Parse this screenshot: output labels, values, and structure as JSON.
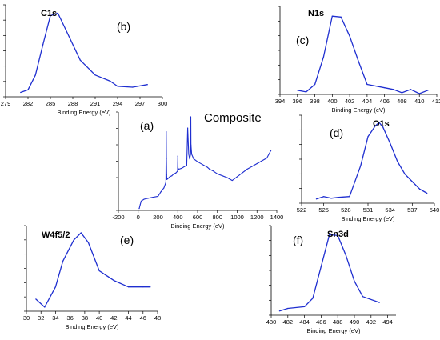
{
  "figure": {
    "xlabel": "Binding Energy (eV)",
    "line_color": "#1f2fd0",
    "axis_color": "#000000"
  },
  "chart_data": [
    {
      "id": "b",
      "type": "line",
      "letter": "(b)",
      "title": "C1s",
      "xlabel": "Binding Energy (eV)",
      "xlim": [
        279,
        300
      ],
      "ylim": [
        0,
        1
      ],
      "xticks": [
        279,
        282,
        285,
        288,
        291,
        294,
        297,
        300
      ],
      "x": [
        281,
        282,
        283,
        284,
        285,
        286,
        287,
        289,
        291,
        293,
        294,
        296,
        298
      ],
      "y": [
        0.05,
        0.08,
        0.25,
        0.6,
        0.93,
        0.96,
        0.78,
        0.42,
        0.25,
        0.18,
        0.12,
        0.11,
        0.14
      ]
    },
    {
      "id": "c",
      "type": "line",
      "letter": "(c)",
      "title": "N1s",
      "xlabel": "Binding Energy (eV)",
      "xlim": [
        394,
        412
      ],
      "ylim": [
        0,
        1
      ],
      "xticks": [
        394,
        396,
        398,
        400,
        402,
        404,
        406,
        408,
        410,
        412
      ],
      "x": [
        396,
        397,
        398,
        399,
        400,
        401,
        402,
        403,
        404,
        406,
        407,
        408,
        409,
        410,
        411
      ],
      "y": [
        0.05,
        0.03,
        0.12,
        0.45,
        0.94,
        0.93,
        0.7,
        0.4,
        0.12,
        0.08,
        0.06,
        0.02,
        0.06,
        0.01,
        0.05
      ]
    },
    {
      "id": "a",
      "type": "line",
      "letter": "(a)",
      "title": "Composite",
      "xlabel": "Binding Energy (eV)",
      "xlim": [
        -200,
        1400
      ],
      "ylim": [
        0,
        1
      ],
      "xticks": [
        -200,
        0,
        200,
        400,
        600,
        800,
        1000,
        1200,
        1400
      ],
      "x": [
        10,
        20,
        30,
        60,
        100,
        150,
        200,
        230,
        260,
        280,
        283,
        285,
        287,
        290,
        300,
        320,
        340,
        360,
        380,
        398,
        400,
        402,
        410,
        440,
        470,
        490,
        500,
        510,
        520,
        529,
        531,
        533,
        540,
        560,
        600,
        650,
        700,
        720,
        760,
        800,
        850,
        900,
        950,
        1000,
        1050,
        1100,
        1150,
        1200,
        1250,
        1300,
        1320,
        1340
      ],
      "y": [
        0.02,
        0.06,
        0.1,
        0.12,
        0.13,
        0.14,
        0.15,
        0.2,
        0.24,
        0.3,
        0.84,
        0.55,
        0.38,
        0.33,
        0.34,
        0.36,
        0.37,
        0.39,
        0.4,
        0.42,
        0.58,
        0.45,
        0.44,
        0.45,
        0.47,
        0.48,
        0.88,
        0.6,
        0.55,
        0.6,
        1.0,
        0.7,
        0.6,
        0.55,
        0.52,
        0.49,
        0.46,
        0.44,
        0.42,
        0.39,
        0.37,
        0.35,
        0.32,
        0.36,
        0.4,
        0.44,
        0.47,
        0.5,
        0.53,
        0.56,
        0.6,
        0.64
      ]
    },
    {
      "id": "d",
      "type": "line",
      "letter": "(d)",
      "title": "O1s",
      "xlabel": "Binding Energy (eV)",
      "xlim": [
        522,
        540
      ],
      "ylim": [
        0,
        1
      ],
      "xticks": [
        522,
        525,
        528,
        531,
        534,
        537,
        540
      ],
      "x": [
        524,
        525,
        526,
        527,
        528.5,
        530,
        531,
        532,
        532.5,
        533,
        534,
        535,
        536,
        537,
        538,
        539
      ],
      "y": [
        0.05,
        0.08,
        0.06,
        0.07,
        0.08,
        0.45,
        0.8,
        0.93,
        0.97,
        0.92,
        0.72,
        0.5,
        0.35,
        0.26,
        0.17,
        0.12
      ]
    },
    {
      "id": "e",
      "type": "line",
      "letter": "(e)",
      "title": "W4f5/2",
      "xlabel": "Binding Energy (eV)",
      "xlim": [
        30,
        48
      ],
      "ylim": [
        0,
        1
      ],
      "xticks": [
        30,
        32,
        34,
        36,
        38,
        40,
        42,
        44,
        46,
        48
      ],
      "x": [
        31.3,
        32.5,
        34,
        35,
        36.5,
        37.5,
        38.5,
        40,
        42,
        44,
        46,
        47
      ],
      "y": [
        0.15,
        0.05,
        0.3,
        0.62,
        0.88,
        0.97,
        0.85,
        0.5,
        0.38,
        0.3,
        0.3,
        0.3
      ]
    },
    {
      "id": "f",
      "type": "line",
      "letter": "(f)",
      "title": "Sn3d",
      "xlabel": "Binding Energy (eV)",
      "xlim": [
        480,
        495
      ],
      "ylim": [
        0,
        1
      ],
      "xticks": [
        480,
        482,
        484,
        486,
        488,
        490,
        492,
        494
      ],
      "x": [
        481,
        482,
        484,
        485,
        487,
        488,
        489,
        490,
        491,
        493
      ],
      "y": [
        0.05,
        0.08,
        0.1,
        0.2,
        0.95,
        0.94,
        0.7,
        0.4,
        0.22,
        0.15
      ]
    }
  ]
}
